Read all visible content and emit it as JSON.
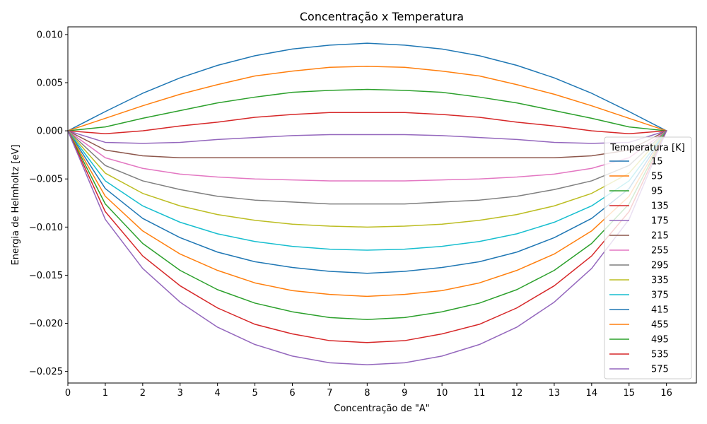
{
  "chart_data": {
    "type": "line",
    "title": "Concentração x Temperatura",
    "xlabel": "Concentração de \"A\"",
    "ylabel": "Energia de Helmholtz [eV]",
    "xlim": [
      0,
      16.8
    ],
    "ylim": [
      -0.0262,
      0.0108
    ],
    "xticks": [
      0,
      1,
      2,
      3,
      4,
      5,
      6,
      7,
      8,
      9,
      10,
      11,
      12,
      13,
      14,
      15,
      16
    ],
    "yticks": [
      -0.025,
      -0.02,
      -0.015,
      -0.01,
      -0.005,
      0.0,
      0.005,
      0.01
    ],
    "ytick_labels": [
      "−0.025",
      "−0.020",
      "−0.015",
      "−0.010",
      "−0.005",
      "0.000",
      "0.005",
      "0.010"
    ],
    "grid": false,
    "legend": {
      "title": "Temperatura [K]",
      "placement": "right"
    },
    "x": [
      0,
      1,
      2,
      3,
      4,
      5,
      6,
      7,
      8,
      9,
      10,
      11,
      12,
      13,
      14,
      15,
      16
    ],
    "series": [
      {
        "name": "15",
        "color": "#1f77b4",
        "values": [
          0,
          0.002,
          0.0039,
          0.0055,
          0.0068,
          0.0078,
          0.0085,
          0.0089,
          0.0091,
          0.0089,
          0.0085,
          0.0078,
          0.0068,
          0.0055,
          0.0039,
          0.002,
          0
        ]
      },
      {
        "name": "55",
        "color": "#ff7f0e",
        "values": [
          0,
          0.0013,
          0.0026,
          0.0038,
          0.0048,
          0.0057,
          0.0062,
          0.0066,
          0.0067,
          0.0066,
          0.0062,
          0.0057,
          0.0048,
          0.0038,
          0.0026,
          0.0013,
          0
        ]
      },
      {
        "name": "95",
        "color": "#2ca02c",
        "values": [
          0,
          0.0004,
          0.0013,
          0.0021,
          0.0029,
          0.0035,
          0.004,
          0.0042,
          0.0043,
          0.0042,
          0.004,
          0.0035,
          0.0029,
          0.0021,
          0.0013,
          0.0004,
          0
        ]
      },
      {
        "name": "135",
        "color": "#d62728",
        "values": [
          0,
          -0.0003,
          0.0,
          0.0005,
          0.0009,
          0.0014,
          0.0017,
          0.0019,
          0.0019,
          0.0019,
          0.0017,
          0.0014,
          0.0009,
          0.0005,
          0.0,
          -0.0003,
          0
        ]
      },
      {
        "name": "175",
        "color": "#9467bd",
        "values": [
          0,
          -0.0012,
          -0.0013,
          -0.0012,
          -0.0009,
          -0.0007,
          -0.0005,
          -0.0004,
          -0.0004,
          -0.0004,
          -0.0005,
          -0.0007,
          -0.0009,
          -0.0012,
          -0.0013,
          -0.0012,
          0
        ]
      },
      {
        "name": "215",
        "color": "#8c564b",
        "values": [
          0,
          -0.002,
          -0.0026,
          -0.0028,
          -0.0028,
          -0.0028,
          -0.0028,
          -0.0028,
          -0.0028,
          -0.0028,
          -0.0028,
          -0.0028,
          -0.0028,
          -0.0028,
          -0.0026,
          -0.002,
          0
        ]
      },
      {
        "name": "255",
        "color": "#e377c2",
        "values": [
          0,
          -0.0028,
          -0.0039,
          -0.0045,
          -0.0048,
          -0.005,
          -0.0051,
          -0.0052,
          -0.0052,
          -0.0052,
          -0.0051,
          -0.005,
          -0.0048,
          -0.0045,
          -0.0039,
          -0.0028,
          0
        ]
      },
      {
        "name": "295",
        "color": "#7f7f7f",
        "values": [
          0,
          -0.0036,
          -0.0052,
          -0.0061,
          -0.0068,
          -0.0072,
          -0.0074,
          -0.0076,
          -0.0076,
          -0.0076,
          -0.0074,
          -0.0072,
          -0.0068,
          -0.0061,
          -0.0052,
          -0.0036,
          0
        ]
      },
      {
        "name": "335",
        "color": "#bcbd22",
        "values": [
          0,
          -0.0044,
          -0.0065,
          -0.0078,
          -0.0087,
          -0.0093,
          -0.0097,
          -0.0099,
          -0.01,
          -0.0099,
          -0.0097,
          -0.0093,
          -0.0087,
          -0.0078,
          -0.0065,
          -0.0044,
          0
        ]
      },
      {
        "name": "375",
        "color": "#17becf",
        "values": [
          0,
          -0.0052,
          -0.0078,
          -0.0095,
          -0.0107,
          -0.0115,
          -0.012,
          -0.0123,
          -0.0124,
          -0.0123,
          -0.012,
          -0.0115,
          -0.0107,
          -0.0095,
          -0.0078,
          -0.0052,
          0
        ]
      },
      {
        "name": "415",
        "color": "#1f77b4",
        "values": [
          0,
          -0.006,
          -0.0091,
          -0.0111,
          -0.0126,
          -0.0136,
          -0.0142,
          -0.0146,
          -0.0148,
          -0.0146,
          -0.0142,
          -0.0136,
          -0.0126,
          -0.0111,
          -0.0091,
          -0.006,
          0
        ]
      },
      {
        "name": "455",
        "color": "#ff7f0e",
        "values": [
          0,
          -0.0068,
          -0.0104,
          -0.0128,
          -0.0145,
          -0.0158,
          -0.0166,
          -0.017,
          -0.0172,
          -0.017,
          -0.0166,
          -0.0158,
          -0.0145,
          -0.0128,
          -0.0104,
          -0.0068,
          0
        ]
      },
      {
        "name": "495",
        "color": "#2ca02c",
        "values": [
          0,
          -0.0076,
          -0.0117,
          -0.0145,
          -0.0165,
          -0.0179,
          -0.0188,
          -0.0194,
          -0.0196,
          -0.0194,
          -0.0188,
          -0.0179,
          -0.0165,
          -0.0145,
          -0.0117,
          -0.0076,
          0
        ]
      },
      {
        "name": "535",
        "color": "#d62728",
        "values": [
          0,
          -0.0084,
          -0.013,
          -0.0161,
          -0.0184,
          -0.0201,
          -0.0211,
          -0.0218,
          -0.022,
          -0.0218,
          -0.0211,
          -0.0201,
          -0.0184,
          -0.0161,
          -0.013,
          -0.0084,
          0
        ]
      },
      {
        "name": "575",
        "color": "#9467bd",
        "values": [
          0,
          -0.0092,
          -0.0143,
          -0.0178,
          -0.0204,
          -0.0222,
          -0.0234,
          -0.0241,
          -0.0243,
          -0.0241,
          -0.0234,
          -0.0222,
          -0.0204,
          -0.0178,
          -0.0143,
          -0.0092,
          0
        ]
      }
    ]
  }
}
